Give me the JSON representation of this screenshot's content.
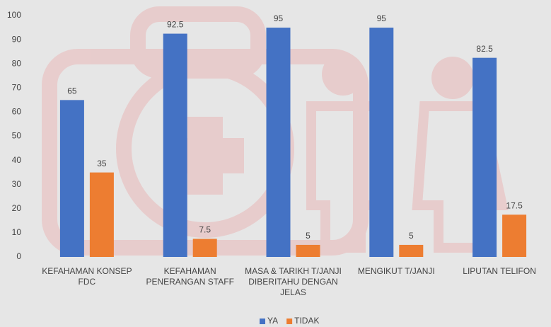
{
  "chart_data": {
    "type": "bar",
    "categories": [
      "KEFAHAMAN KONSEP FDC",
      "KEFAHAMAN PENERANGAN STAFF",
      "MASA & TARIKH T/JANJI DIBERITAHU DENGAN JELAS",
      "MENGIKUT T/JANJI",
      "LIPUTAN TELIFON"
    ],
    "series": [
      {
        "name": "YA",
        "color": "#4472c4",
        "values": [
          65,
          92.5,
          95,
          95,
          82.5
        ]
      },
      {
        "name": "TIDAK",
        "color": "#ed7d31",
        "values": [
          35,
          7.5,
          5,
          5,
          17.5
        ]
      }
    ],
    "ylim": [
      0,
      100
    ],
    "yticks": [
      0,
      10,
      20,
      30,
      40,
      50,
      60,
      70,
      80,
      90,
      100
    ],
    "grid": false,
    "legend": "bottom"
  }
}
